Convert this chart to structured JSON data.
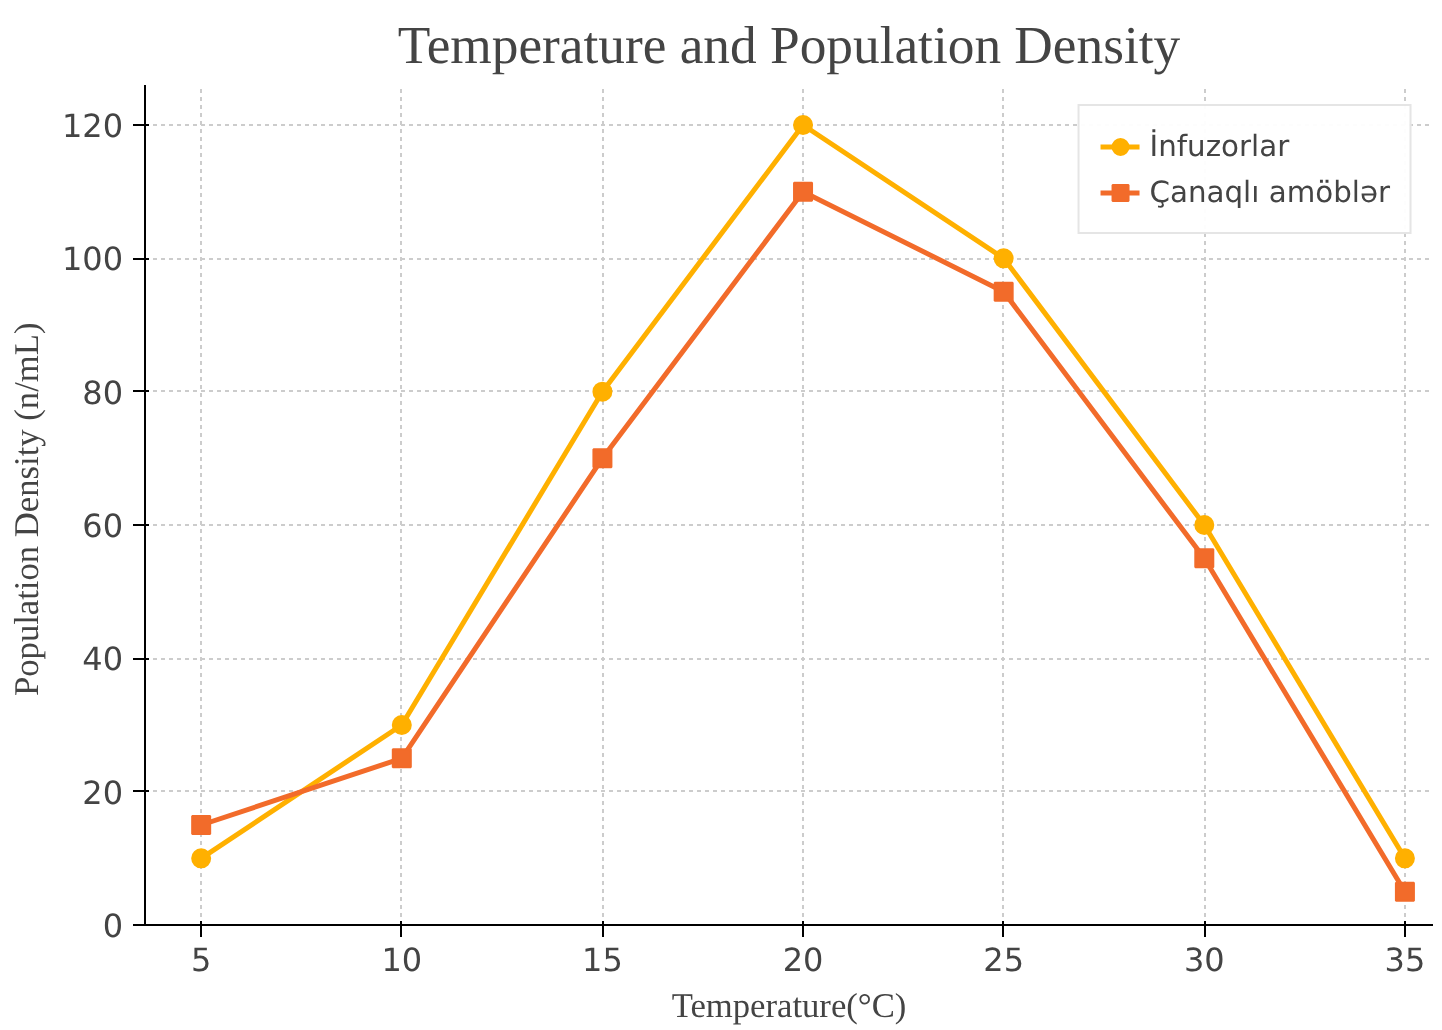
{
  "chart_data": {
    "type": "line",
    "title": "Temperature and Population Density",
    "xlabel": "Temperature(°C)",
    "ylabel": "Population Density  (n/mL)",
    "x": [
      5,
      10,
      15,
      20,
      25,
      30,
      35
    ],
    "series": [
      {
        "name": "İnfuzorlar",
        "color": "#ffb000",
        "marker": "circle",
        "values": [
          10,
          30,
          80,
          120,
          100,
          60,
          10
        ]
      },
      {
        "name": "Çanaqlı amöblər",
        "color": "#f26b2a",
        "marker": "square",
        "values": [
          15,
          25,
          70,
          110,
          95,
          55,
          5
        ]
      }
    ],
    "xlim": [
      3.6,
      35.7
    ],
    "ylim": [
      0,
      126
    ],
    "xticks": [
      5,
      10,
      15,
      20,
      25,
      30,
      35
    ],
    "yticks": [
      0,
      20,
      40,
      60,
      80,
      100,
      120
    ],
    "grid": true,
    "legend": "top right",
    "line_style": "solid"
  }
}
